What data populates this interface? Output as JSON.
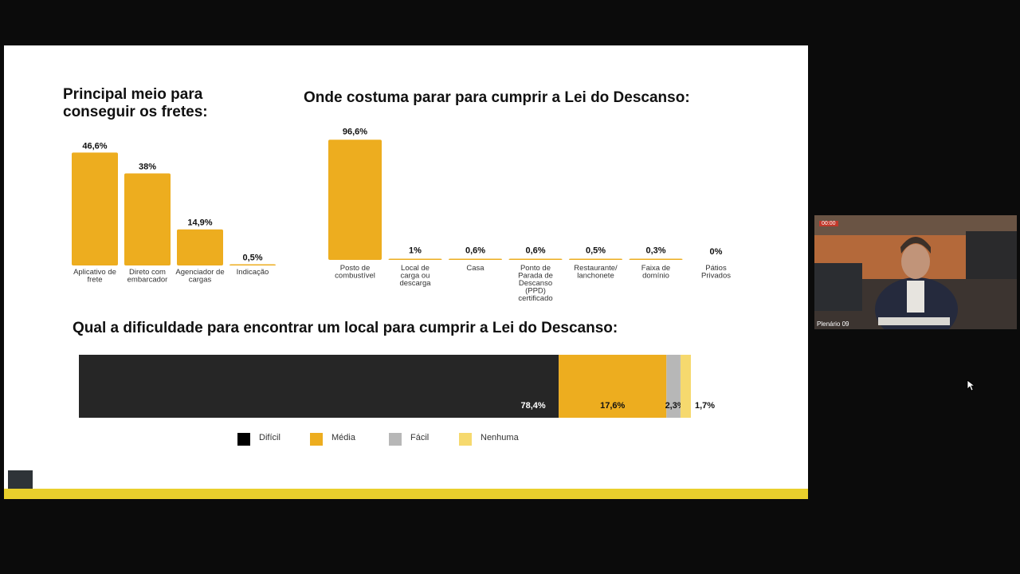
{
  "colors": {
    "accent": "#EDAD1F",
    "dark": "#262626",
    "gray": "#B7B7B7",
    "light": "#F6D96E",
    "footer": "#E9CF2C"
  },
  "video": {
    "caption": "Plenário 09",
    "rec": "00:00"
  },
  "legend": [
    {
      "label": "Difícil",
      "color": "#000000"
    },
    {
      "label": "Média",
      "color": "#EDAD1F"
    },
    {
      "label": "Fácil",
      "color": "#B7B7B7"
    },
    {
      "label": "Nenhuma",
      "color": "#F6D96E"
    }
  ],
  "chart_data": [
    {
      "type": "bar",
      "title": "Principal meio para conseguir os fretes:",
      "categories": [
        "Aplicativo de frete",
        "Direto com embarcador",
        "Agenciador de cargas",
        "Indicação"
      ],
      "values": [
        46.6,
        38,
        14.9,
        0.5
      ],
      "value_labels": [
        "46,6%",
        "38%",
        "14,9%",
        "0,5%"
      ],
      "ylim": [
        0,
        50
      ]
    },
    {
      "type": "bar",
      "title": "Onde costuma parar para cumprir a Lei do Descanso:",
      "categories": [
        "Posto de combustível",
        "Local de carga ou descarga",
        "Casa",
        "Ponto de Parada de Descanso (PPD) certificado",
        "Restaurante/ lanchonete",
        "Faixa de domínio",
        "Pátios Privados"
      ],
      "values": [
        96.6,
        1,
        0.6,
        0.6,
        0.5,
        0.3,
        0
      ],
      "value_labels": [
        "96,6%",
        "1%",
        "0,6%",
        "0,6%",
        "0,5%",
        "0,3%",
        "0%"
      ],
      "ylim": [
        0,
        100
      ]
    },
    {
      "type": "bar",
      "orientation": "horizontal-stacked",
      "title": "Qual a dificuldade para encontrar um local para cumprir a Lei do Descanso:",
      "series": [
        {
          "name": "Difícil",
          "values": [
            78.4
          ],
          "label": "78,4%"
        },
        {
          "name": "Média",
          "values": [
            17.6
          ],
          "label": "17,6%"
        },
        {
          "name": "Fácil",
          "values": [
            2.3
          ],
          "label": "2,3%"
        },
        {
          "name": "Nenhuma",
          "values": [
            1.7
          ],
          "label": "1,7%"
        }
      ],
      "xlim": [
        0,
        100
      ],
      "legend": "bottom"
    }
  ]
}
